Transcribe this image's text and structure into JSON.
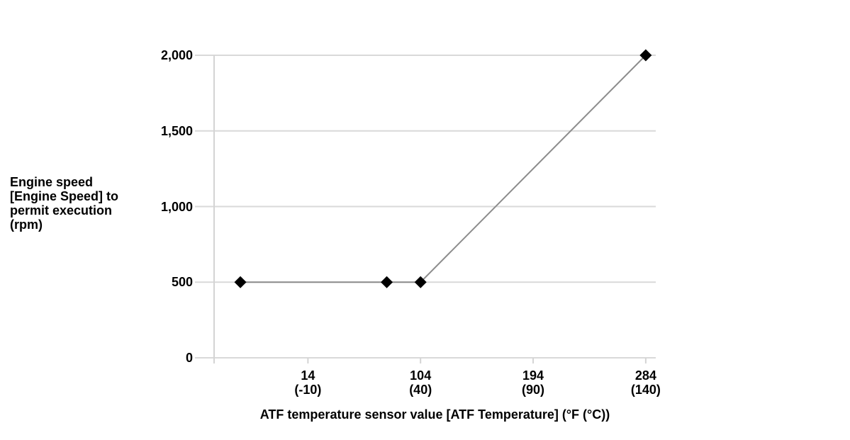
{
  "chart_data": {
    "type": "line",
    "title": "",
    "xlabel": "ATF temperature sensor value [ATF Temperature] (°F (°C))",
    "ylabel": "Engine speed\n[Engine Speed] to\npermit execution\n(rpm)",
    "xlim_f": [
      -61,
      292
    ],
    "ylim": [
      0,
      2000
    ],
    "grid": true,
    "x_ticks": [
      {
        "value_f": 14,
        "label_f": "14",
        "label_c": "(-10)"
      },
      {
        "value_f": 104,
        "label_f": "104",
        "label_c": "(40)"
      },
      {
        "value_f": 194,
        "label_f": "194",
        "label_c": "(90)"
      },
      {
        "value_f": 284,
        "label_f": "284",
        "label_c": "(140)"
      }
    ],
    "y_ticks": [
      {
        "value": 0,
        "label": "0"
      },
      {
        "value": 500,
        "label": "500"
      },
      {
        "value": 1000,
        "label": "1,000"
      },
      {
        "value": 1500,
        "label": "1,500"
      },
      {
        "value": 2000,
        "label": "2,000"
      }
    ],
    "series": [
      {
        "name": "Engine speed to permit execution",
        "marker": "diamond",
        "points": [
          {
            "x_f": -40,
            "x_c": -40,
            "rpm": 500
          },
          {
            "x_f": 77,
            "x_c": 25,
            "rpm": 500
          },
          {
            "x_f": 104,
            "x_c": 40,
            "rpm": 500
          },
          {
            "x_f": 284,
            "x_c": 140,
            "rpm": 2000
          }
        ]
      }
    ],
    "colors": {
      "background": "#ffffff",
      "gridline": "#d9d9d9",
      "axis": "#d4d4d4",
      "data_line": "#8c8c8c",
      "marker": "#000000",
      "text": "#000000"
    }
  }
}
